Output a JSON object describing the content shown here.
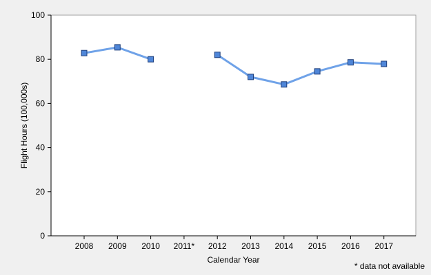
{
  "chart_data": {
    "type": "line",
    "categories": [
      "2008",
      "2009",
      "2010",
      "2011*",
      "2012",
      "2013",
      "2014",
      "2015",
      "2016",
      "2017"
    ],
    "series": [
      {
        "values": [
          82.8,
          85.4,
          80.0,
          null,
          82.0,
          72.0,
          68.6,
          74.5,
          78.6,
          77.9
        ]
      }
    ],
    "xlabel": "Calendar Year",
    "ylabel": "Flight Hours (100,000s)",
    "ylim": [
      0,
      100
    ],
    "yticks": [
      0,
      20,
      40,
      60,
      80,
      100
    ],
    "footnote": "* data not available",
    "grid": false,
    "colors": {
      "line": "#6fa2e8",
      "marker_fill": "#4f86d8",
      "marker_stroke": "#1f3f7a",
      "background": "#f0f0f0",
      "plot_background": "#ffffff",
      "axis": "#000000"
    }
  }
}
